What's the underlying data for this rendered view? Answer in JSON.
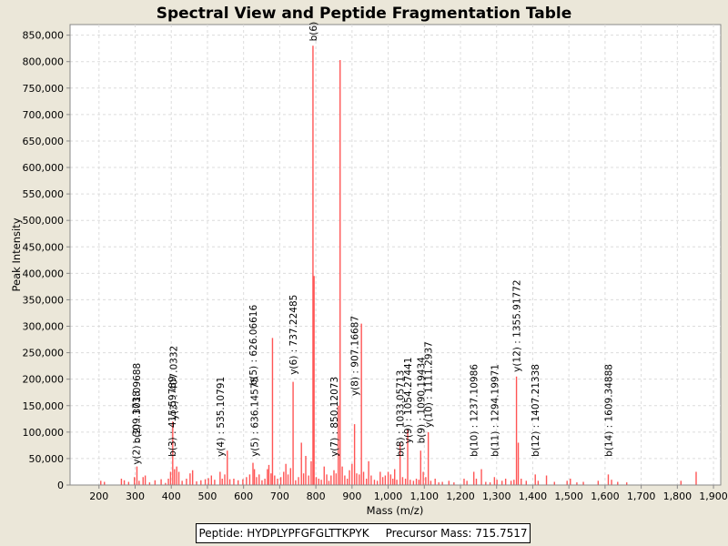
{
  "chart_data": {
    "type": "bar",
    "title": "Spectral View and Peptide Fragmentation Table",
    "xlabel": "Mass (m/z)",
    "ylabel": "Peak Intensity",
    "xlim": [
      120,
      1920
    ],
    "ylim": [
      0,
      870000
    ],
    "xticks": [
      200,
      300,
      400,
      500,
      600,
      700,
      800,
      900,
      1000,
      1100,
      1200,
      1300,
      1400,
      1500,
      1600,
      1700,
      1800,
      1900
    ],
    "xtick_labels": [
      "200",
      "300",
      "400",
      "500",
      "600",
      "700",
      "800",
      "900",
      "1,000",
      "1,100",
      "1,200",
      "1,300",
      "1,400",
      "1,500",
      "1,600",
      "1,700",
      "1,800",
      "1,900"
    ],
    "yticks": [
      0,
      50000,
      100000,
      150000,
      200000,
      250000,
      300000,
      350000,
      400000,
      450000,
      500000,
      550000,
      600000,
      650000,
      700000,
      750000,
      800000,
      850000
    ],
    "ytick_labels": [
      "0",
      "50,000",
      "100,000",
      "150,000",
      "200,000",
      "250,000",
      "300,000",
      "350,000",
      "400,000",
      "450,000",
      "500,000",
      "550,000",
      "600,000",
      "650,000",
      "700,000",
      "750,000",
      "800,000",
      "850,000"
    ],
    "grid": true,
    "color": "#ff5555",
    "peaks": [
      [
        205,
        8000
      ],
      [
        215,
        6000
      ],
      [
        262,
        12000
      ],
      [
        270,
        9000
      ],
      [
        282,
        6000
      ],
      [
        298,
        15000
      ],
      [
        305,
        35000
      ],
      [
        311,
        8000
      ],
      [
        322,
        15000
      ],
      [
        328,
        18000
      ],
      [
        340,
        5000
      ],
      [
        355,
        9000
      ],
      [
        372,
        11000
      ],
      [
        384,
        4000
      ],
      [
        392,
        12000
      ],
      [
        398,
        25000
      ],
      [
        404,
        120000
      ],
      [
        409,
        30000
      ],
      [
        415,
        35000
      ],
      [
        421,
        25000
      ],
      [
        430,
        8000
      ],
      [
        442,
        12000
      ],
      [
        452,
        22000
      ],
      [
        459,
        28000
      ],
      [
        470,
        7000
      ],
      [
        482,
        9000
      ],
      [
        494,
        11000
      ],
      [
        503,
        13000
      ],
      [
        511,
        18000
      ],
      [
        520,
        10000
      ],
      [
        535,
        25000
      ],
      [
        541,
        12000
      ],
      [
        548,
        20000
      ],
      [
        555,
        65000
      ],
      [
        562,
        11000
      ],
      [
        573,
        12000
      ],
      [
        585,
        9000
      ],
      [
        598,
        11000
      ],
      [
        608,
        15000
      ],
      [
        617,
        20000
      ],
      [
        626,
        42000
      ],
      [
        630,
        30000
      ],
      [
        636,
        15000
      ],
      [
        643,
        20000
      ],
      [
        651,
        9000
      ],
      [
        659,
        12000
      ],
      [
        666,
        30000
      ],
      [
        670,
        38000
      ],
      [
        676,
        22000
      ],
      [
        680,
        278000
      ],
      [
        686,
        18000
      ],
      [
        694,
        12000
      ],
      [
        703,
        15000
      ],
      [
        711,
        25000
      ],
      [
        717,
        40000
      ],
      [
        723,
        20000
      ],
      [
        730,
        32000
      ],
      [
        737,
        195000
      ],
      [
        744,
        9000
      ],
      [
        752,
        15000
      ],
      [
        760,
        80000
      ],
      [
        766,
        22000
      ],
      [
        772,
        55000
      ],
      [
        780,
        18000
      ],
      [
        787,
        45000
      ],
      [
        792,
        830000
      ],
      [
        795,
        395000
      ],
      [
        801,
        15000
      ],
      [
        808,
        12000
      ],
      [
        815,
        10000
      ],
      [
        823,
        35000
      ],
      [
        830,
        20000
      ],
      [
        836,
        8000
      ],
      [
        842,
        18000
      ],
      [
        850,
        28000
      ],
      [
        856,
        22000
      ],
      [
        862,
        150000
      ],
      [
        867,
        803000
      ],
      [
        873,
        35000
      ],
      [
        880,
        18000
      ],
      [
        887,
        12000
      ],
      [
        893,
        28000
      ],
      [
        900,
        40000
      ],
      [
        907,
        115000
      ],
      [
        913,
        22000
      ],
      [
        920,
        20000
      ],
      [
        926,
        305000
      ],
      [
        932,
        25000
      ],
      [
        940,
        12000
      ],
      [
        946,
        45000
      ],
      [
        953,
        18000
      ],
      [
        962,
        10000
      ],
      [
        970,
        8000
      ],
      [
        978,
        25000
      ],
      [
        985,
        15000
      ],
      [
        992,
        18000
      ],
      [
        1000,
        25000
      ],
      [
        1007,
        20000
      ],
      [
        1013,
        12000
      ],
      [
        1018,
        30000
      ],
      [
        1024,
        10000
      ],
      [
        1033,
        80000
      ],
      [
        1040,
        15000
      ],
      [
        1048,
        12000
      ],
      [
        1054,
        105000
      ],
      [
        1061,
        10000
      ],
      [
        1070,
        8000
      ],
      [
        1078,
        12000
      ],
      [
        1085,
        10000
      ],
      [
        1090,
        65000
      ],
      [
        1097,
        25000
      ],
      [
        1104,
        15000
      ],
      [
        1111,
        100000
      ],
      [
        1118,
        8000
      ],
      [
        1130,
        12000
      ],
      [
        1140,
        5000
      ],
      [
        1150,
        6000
      ],
      [
        1168,
        8000
      ],
      [
        1182,
        5000
      ],
      [
        1210,
        12000
      ],
      [
        1218,
        8000
      ],
      [
        1237,
        25000
      ],
      [
        1244,
        12000
      ],
      [
        1258,
        30000
      ],
      [
        1270,
        6000
      ],
      [
        1282,
        5000
      ],
      [
        1294,
        15000
      ],
      [
        1301,
        10000
      ],
      [
        1315,
        8000
      ],
      [
        1325,
        12000
      ],
      [
        1340,
        8000
      ],
      [
        1348,
        10000
      ],
      [
        1355,
        205000
      ],
      [
        1360,
        80000
      ],
      [
        1368,
        12000
      ],
      [
        1382,
        8000
      ],
      [
        1407,
        20000
      ],
      [
        1415,
        8000
      ],
      [
        1438,
        18000
      ],
      [
        1460,
        6000
      ],
      [
        1495,
        8000
      ],
      [
        1504,
        12000
      ],
      [
        1522,
        5000
      ],
      [
        1540,
        6000
      ],
      [
        1581,
        8000
      ],
      [
        1609,
        20000
      ],
      [
        1618,
        10000
      ],
      [
        1635,
        6000
      ],
      [
        1660,
        5000
      ],
      [
        1810,
        8000
      ],
      [
        1852,
        25000
      ]
    ],
    "annotations": [
      {
        "x": 302,
        "y": 35000,
        "label": "y(2) : 309.1738"
      },
      {
        "x": 304,
        "y": 75000,
        "label": "b(2) : 301.09688"
      },
      {
        "x": 402,
        "y": 50000,
        "label": "b(3) : 415.59789"
      },
      {
        "x": 406,
        "y": 120000,
        "label": "y(3) : 407.0332"
      },
      {
        "x": 535,
        "y": 50000,
        "label": "y(4) : 535.10791"
      },
      {
        "x": 630,
        "y": 50000,
        "label": "y(5) : 636.14575"
      },
      {
        "x": 626,
        "y": 185000,
        "label": "b(5) : 626.06616"
      },
      {
        "x": 737,
        "y": 205000,
        "label": "y(6) : 737.22485"
      },
      {
        "x": 792,
        "y": 835000,
        "label": "b(6)"
      },
      {
        "x": 850,
        "y": 50000,
        "label": "y(7) : 850.12073"
      },
      {
        "x": 907,
        "y": 165000,
        "label": "y(8) : 907.16687"
      },
      {
        "x": 1033,
        "y": 50000,
        "label": "b(8) : 1033.05713"
      },
      {
        "x": 1054,
        "y": 75000,
        "label": "y(9) : 1054.27441"
      },
      {
        "x": 1090,
        "y": 75000,
        "label": "b(9) : 1090.19434"
      },
      {
        "x": 1111,
        "y": 105000,
        "label": "y(10) : 1111.2937"
      },
      {
        "x": 1237,
        "y": 50000,
        "label": "b(10) : 1237.10986"
      },
      {
        "x": 1294,
        "y": 50000,
        "label": "b(11) : 1294.19971"
      },
      {
        "x": 1355,
        "y": 210000,
        "label": "y(12) : 1355.91772"
      },
      {
        "x": 1407,
        "y": 50000,
        "label": "b(12) : 1407.21338"
      },
      {
        "x": 1609,
        "y": 50000,
        "label": "b(14) : 1609.34888"
      }
    ]
  },
  "legend": {
    "peptide_label": "Peptide: HYDPLYPFGFGLTTKPYK",
    "precursor_label": "Precursor Mass: 715.7517"
  }
}
